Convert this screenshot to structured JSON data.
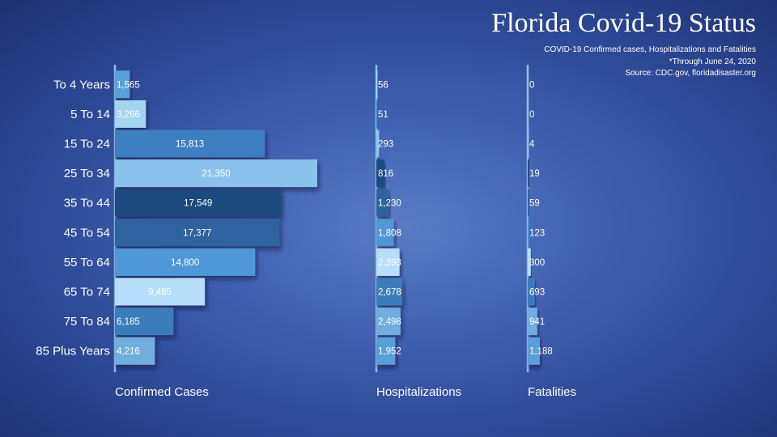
{
  "header": {
    "title": "Florida Covid-19 Status",
    "subtitle_1": "COVID-19 Confirmed cases, Hospitalizations and Fatalities",
    "subtitle_2": "*Through June 24, 2020",
    "subtitle_3": "Source: CDC.gov, floridadisaster.org"
  },
  "colors": {
    "background": "#3f5fae",
    "axis_line": "#8ec4ee",
    "bar_palette": [
      "#5aa0d8",
      "#a5d3f2",
      "#3d7fbf",
      "#8ac4ee",
      "#1e4a7e",
      "#2e64a0",
      "#4f97d6",
      "#b7defa",
      "#3b7dbb",
      "#6faedf"
    ]
  },
  "chart_data": {
    "type": "bar",
    "orientation": "horizontal",
    "categories": [
      "To 4 Years",
      "5 To 14",
      "15 To 24",
      "25 To 34",
      "35 To 44",
      "45 To 54",
      "55 To 64",
      "65 To 74",
      "75 To 84",
      "85 Plus Years"
    ],
    "series": [
      {
        "name": "Confirmed Cases",
        "values": [
          1565,
          3266,
          15813,
          21350,
          17549,
          17377,
          14800,
          9485,
          6185,
          4216
        ],
        "labels": [
          "1,565",
          "3,266",
          "15,813",
          "21,350",
          "17,549",
          "17,377",
          "14,800",
          "9,485",
          "6,185",
          "4,216"
        ]
      },
      {
        "name": "Hospitalizations",
        "values": [
          56,
          51,
          293,
          816,
          1230,
          1808,
          2393,
          2678,
          2498,
          1952
        ],
        "labels": [
          "56",
          "51",
          "293",
          "816",
          "1,230",
          "1,808",
          "2,393",
          "2,678",
          "2,498",
          "1,952"
        ]
      },
      {
        "name": "Fatalities",
        "values": [
          0,
          0,
          4,
          19,
          59,
          123,
          300,
          693,
          941,
          1188
        ],
        "labels": [
          "0",
          "0",
          "4",
          "19",
          "59",
          "123",
          "300",
          "693",
          "941",
          "1,188"
        ]
      }
    ],
    "title": "Florida Covid-19 Status",
    "xlabel": "",
    "ylabel": "",
    "grid": false,
    "legend": "none"
  }
}
